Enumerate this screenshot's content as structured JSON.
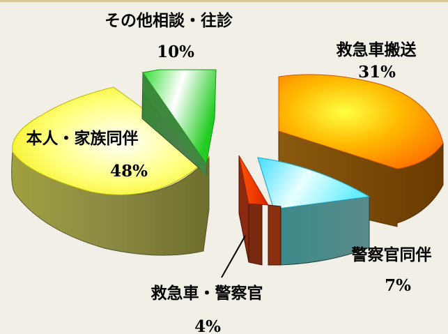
{
  "chart_data": {
    "type": "pie",
    "title": "",
    "categories": [
      "本人・家族同伴",
      "その他相談・往診",
      "救急車搬送",
      "警察官同伴",
      "救急車・警察官"
    ],
    "values": [
      48,
      10,
      31,
      7,
      4
    ],
    "value_labels": [
      "48%",
      "10%",
      "31%",
      "7%",
      "4%"
    ],
    "colors": [
      "#ffff66",
      "#33dd33",
      "#ff8800",
      "#66e8ff",
      "#ff3300"
    ],
    "style": "3d-exploded"
  }
}
